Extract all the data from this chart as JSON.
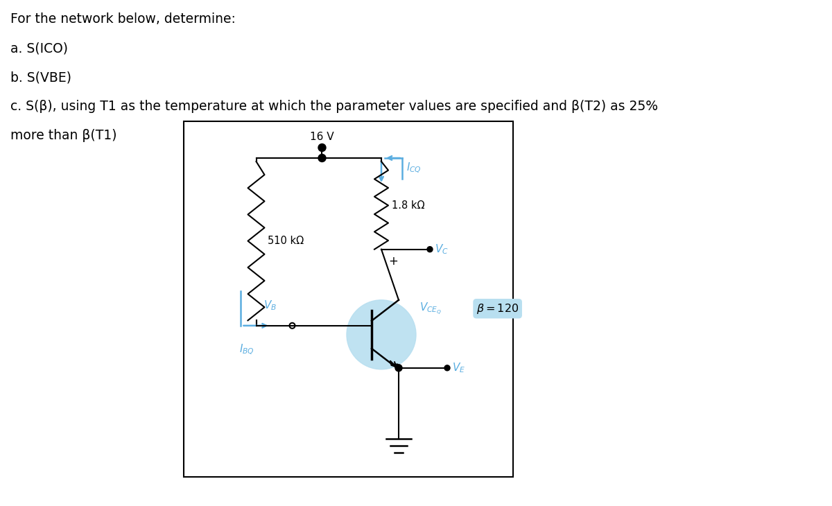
{
  "text_lines": [
    "For the network below, determine:",
    "a. S(ICO)",
    "b. S(VBE)",
    "c. S(β), using T1 as the temperature at which the parameter values are specified and β(T2) as 25%",
    "more than β(T1)"
  ],
  "vcc": "16 V",
  "r1": "510 kΩ",
  "rc": "1.8 kΩ",
  "bg_color": "#ffffff",
  "blue_color": "#5aade0",
  "box_color": "#b8dff0",
  "text_color": "#000000",
  "fig_w": 12.0,
  "fig_h": 7.3,
  "dpi": 100
}
